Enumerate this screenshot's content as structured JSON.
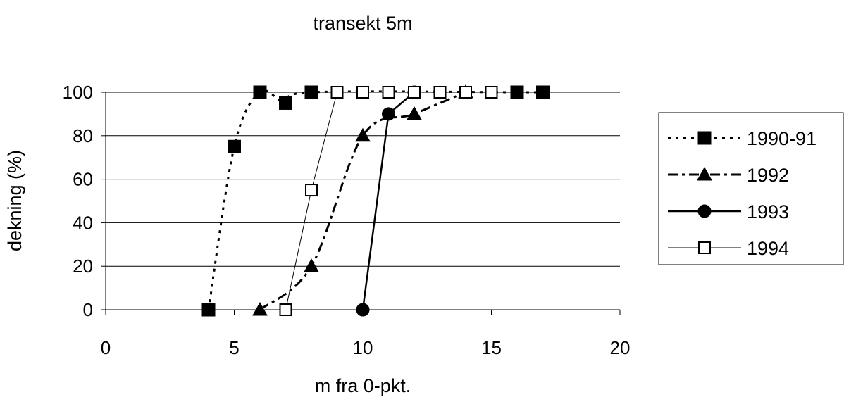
{
  "chart_data": {
    "type": "line",
    "title": "transekt 5m",
    "xlabel": "m fra 0-pkt.",
    "ylabel": "dekning (%)",
    "xlim": [
      0,
      20
    ],
    "ylim": [
      0,
      100
    ],
    "xticks": [
      0,
      5,
      10,
      15,
      20
    ],
    "yticks": [
      0,
      20,
      40,
      60,
      80,
      100
    ],
    "grid": "horizontal",
    "legend_position": "right",
    "series": [
      {
        "name": "1990-91",
        "line_style": "dotted",
        "marker": "filled-square",
        "smooth": true,
        "color": "#000000",
        "x": [
          4,
          5,
          6,
          7,
          8,
          16,
          17
        ],
        "y": [
          0,
          75,
          100,
          95,
          100,
          100,
          100
        ]
      },
      {
        "name": "1992",
        "line_style": "dash-dot",
        "marker": "filled-triangle",
        "smooth": true,
        "color": "#000000",
        "x": [
          6,
          8,
          10,
          12,
          14
        ],
        "y": [
          0,
          20,
          80,
          90,
          100
        ]
      },
      {
        "name": "1993",
        "line_style": "solid",
        "marker": "filled-circle",
        "smooth": false,
        "color": "#000000",
        "x": [
          10,
          11,
          12
        ],
        "y": [
          0,
          90,
          100
        ]
      },
      {
        "name": "1994",
        "line_style": "thin-solid",
        "marker": "open-square",
        "smooth": false,
        "color": "#000000",
        "x": [
          7,
          8,
          9,
          10,
          11,
          12,
          13,
          14,
          15
        ],
        "y": [
          0,
          55,
          100,
          100,
          100,
          100,
          100,
          100,
          100
        ]
      }
    ]
  }
}
